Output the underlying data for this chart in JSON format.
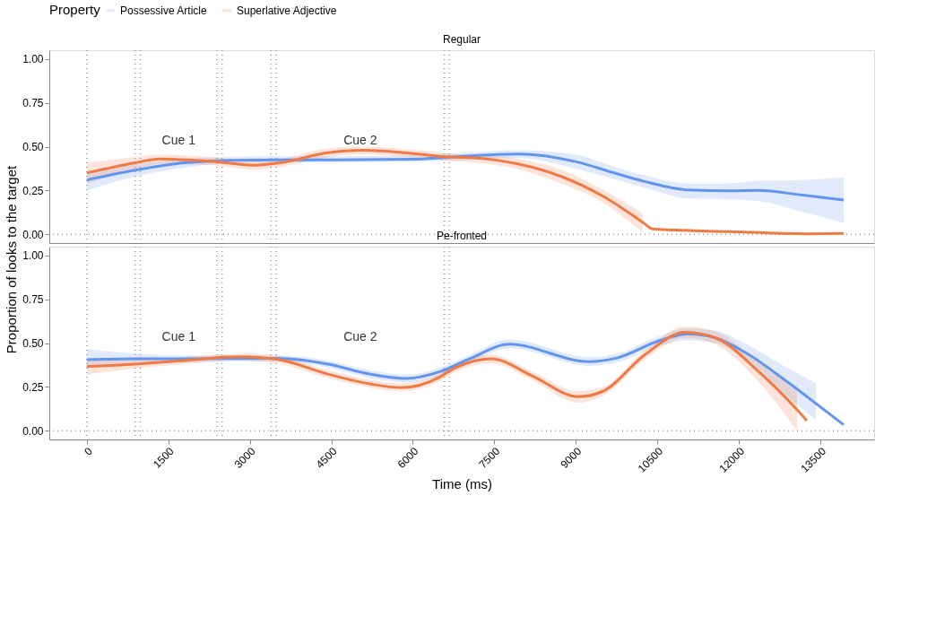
{
  "chart_data": [
    {
      "type": "line",
      "title": "Regular",
      "ylabel": "Proportion of looks to the target",
      "legend_title": "Property",
      "legend": "top",
      "xlim": [
        -690,
        14490
      ],
      "ylim": [
        -0.05,
        1.05
      ],
      "xticks": [
        0,
        1500,
        3000,
        4500,
        6000,
        7500,
        9000,
        10500,
        12000,
        13500
      ],
      "yticks": [
        {
          "value": 0,
          "label": "0.00"
        },
        {
          "value": 0.25,
          "label": "0.25"
        },
        {
          "value": 0.5,
          "label": "0.50"
        },
        {
          "value": 0.75,
          "label": "0.75"
        },
        {
          "value": 1,
          "label": "1.00"
        }
      ],
      "tick_labels": "y",
      "grid": false,
      "marker": "none",
      "line_style": "solid",
      "series": [
        {
          "name": "Possessive Article",
          "color": "#6495ed",
          "x": [
            0,
            890,
            1790,
            2410,
            3500,
            4500,
            6000,
            6660,
            7950,
            8990,
            9760,
            10280,
            11060,
            11830,
            12360,
            13140,
            13930
          ],
          "values": [
            0.31,
            0.366,
            0.408,
            0.42,
            0.425,
            0.425,
            0.428,
            0.44,
            0.458,
            0.415,
            0.345,
            0.3,
            0.253,
            0.248,
            0.25,
            0.225,
            0.196
          ],
          "lower": [
            0.25,
            0.33,
            0.38,
            0.4,
            0.41,
            0.41,
            0.415,
            0.42,
            0.435,
            0.375,
            0.31,
            0.265,
            0.205,
            0.2,
            0.19,
            0.13,
            0.065
          ],
          "upper": [
            0.36,
            0.4,
            0.43,
            0.44,
            0.445,
            0.445,
            0.45,
            0.46,
            0.48,
            0.455,
            0.38,
            0.335,
            0.29,
            0.29,
            0.305,
            0.31,
            0.325
          ]
        },
        {
          "name": "Superlative Adjective",
          "color": "#f07a45",
          "x": [
            0,
            890,
            1340,
            2270,
            3080,
            3560,
            4440,
            5060,
            6100,
            6660,
            7130,
            7950,
            8730,
            9500,
            10230,
            10410,
            11830,
            13230,
            13930
          ],
          "values": [
            0.35,
            0.408,
            0.43,
            0.417,
            0.394,
            0.408,
            0.465,
            0.479,
            0.458,
            0.441,
            0.436,
            0.4,
            0.33,
            0.217,
            0.069,
            0.031,
            0.015,
            0.003,
            0.005
          ],
          "lower": [
            0.29,
            0.37,
            0.4,
            0.395,
            0.37,
            0.385,
            0.44,
            0.455,
            0.435,
            0.42,
            0.41,
            0.37,
            0.29,
            0.18,
            0.01,
            null,
            null,
            null,
            null
          ],
          "upper": [
            0.41,
            0.44,
            0.455,
            0.44,
            0.415,
            0.43,
            0.49,
            0.5,
            0.48,
            0.46,
            0.455,
            0.43,
            0.37,
            0.255,
            0.12,
            null,
            null,
            null,
            null
          ]
        }
      ],
      "ref_lines": [
        {
          "axis": "x",
          "value": 0,
          "line_style": "dotted",
          "color": "#999999"
        },
        {
          "axis": "x",
          "value": 890,
          "line_style": "dotted",
          "color": "#999999"
        },
        {
          "axis": "x",
          "value": 985,
          "line_style": "dotted",
          "color": "#999999"
        },
        {
          "axis": "x",
          "value": 2395,
          "line_style": "dotted",
          "color": "#999999"
        },
        {
          "axis": "x",
          "value": 2490,
          "line_style": "dotted",
          "color": "#999999"
        },
        {
          "axis": "x",
          "value": 3390,
          "line_style": "dotted",
          "color": "#999999"
        },
        {
          "axis": "x",
          "value": 3485,
          "line_style": "dotted",
          "color": "#999999"
        },
        {
          "axis": "x",
          "value": 6580,
          "line_style": "dotted",
          "color": "#999999"
        },
        {
          "axis": "x",
          "value": 6670,
          "line_style": "dotted",
          "color": "#999999"
        },
        {
          "axis": "y",
          "value": 0,
          "line_style": "dotted",
          "color": "#999999"
        }
      ],
      "annotations": [
        "Cue 1",
        "Cue 2"
      ]
    },
    {
      "type": "line",
      "title": "Pe-fronted",
      "xlabel": "Time (ms)",
      "xlim": [
        -690,
        14490
      ],
      "ylim": [
        -0.05,
        1.05
      ],
      "xticks": [
        0,
        1500,
        3000,
        4500,
        6000,
        7500,
        9000,
        10500,
        12000,
        13500
      ],
      "yticks": [
        {
          "value": 0,
          "label": "0.00"
        },
        {
          "value": 0.25,
          "label": "0.25"
        },
        {
          "value": 0.5,
          "label": "0.50"
        },
        {
          "value": 0.75,
          "label": "0.75"
        },
        {
          "value": 1,
          "label": "1.00"
        }
      ],
      "grid": false,
      "marker": "none",
      "line_style": "solid",
      "series": [
        {
          "name": "Possessive Article",
          "color": "#6495ed",
          "x": [
            0,
            890,
            1790,
            2830,
            3500,
            4440,
            5210,
            5880,
            6510,
            7030,
            7780,
            9240,
            9760,
            10540,
            11060,
            11580,
            12100,
            12880,
            13420,
            13930
          ],
          "values": [
            0.405,
            0.41,
            0.41,
            0.412,
            0.413,
            0.38,
            0.323,
            0.298,
            0.338,
            0.408,
            0.493,
            0.394,
            0.415,
            0.514,
            0.552,
            0.528,
            0.45,
            0.281,
            0.155,
            0.034
          ],
          "lower": [
            0.36,
            0.38,
            0.39,
            0.395,
            0.395,
            0.36,
            0.3,
            0.275,
            0.315,
            0.385,
            0.47,
            0.37,
            0.39,
            0.485,
            0.515,
            0.5,
            0.41,
            0.2,
            0.06,
            null
          ],
          "upper": [
            0.465,
            0.44,
            0.43,
            0.43,
            0.43,
            0.4,
            0.345,
            0.32,
            0.36,
            0.43,
            0.52,
            0.42,
            0.44,
            0.54,
            0.585,
            0.57,
            0.5,
            0.36,
            0.27,
            null
          ]
        },
        {
          "name": "Superlative Adjective",
          "color": "#f07a45",
          "x": [
            0,
            890,
            1790,
            2830,
            3500,
            4440,
            5210,
            5780,
            6510,
            6660,
            7440,
            8220,
            9040,
            9500,
            10280,
            11010,
            11580,
            12360,
            13070,
            13250
          ],
          "values": [
            0.366,
            0.38,
            0.4,
            0.422,
            0.408,
            0.323,
            0.267,
            0.246,
            0.309,
            0.338,
            0.411,
            0.309,
            0.194,
            0.225,
            0.436,
            0.561,
            0.528,
            0.338,
            0.12,
            0.058
          ],
          "lower": [
            0.32,
            0.355,
            0.38,
            0.4,
            0.385,
            0.3,
            0.245,
            0.225,
            0.285,
            0.315,
            0.385,
            0.285,
            0.16,
            0.2,
            0.41,
            0.53,
            0.49,
            0.28,
            0.0,
            null
          ],
          "upper": [
            0.41,
            0.405,
            0.42,
            0.44,
            0.43,
            0.345,
            0.29,
            0.27,
            0.33,
            0.36,
            0.435,
            0.335,
            0.225,
            0.25,
            0.46,
            0.595,
            0.565,
            0.39,
            0.22,
            null
          ]
        }
      ],
      "ref_lines": [
        {
          "axis": "x",
          "value": 0,
          "line_style": "dotted",
          "color": "#999999"
        },
        {
          "axis": "x",
          "value": 890,
          "line_style": "dotted",
          "color": "#999999"
        },
        {
          "axis": "x",
          "value": 985,
          "line_style": "dotted",
          "color": "#999999"
        },
        {
          "axis": "x",
          "value": 2395,
          "line_style": "dotted",
          "color": "#999999"
        },
        {
          "axis": "x",
          "value": 2490,
          "line_style": "dotted",
          "color": "#999999"
        },
        {
          "axis": "x",
          "value": 3390,
          "line_style": "dotted",
          "color": "#999999"
        },
        {
          "axis": "x",
          "value": 3485,
          "line_style": "dotted",
          "color": "#999999"
        },
        {
          "axis": "x",
          "value": 6580,
          "line_style": "dotted",
          "color": "#999999"
        },
        {
          "axis": "x",
          "value": 6670,
          "line_style": "dotted",
          "color": "#999999"
        },
        {
          "axis": "y",
          "value": 0,
          "line_style": "dotted",
          "color": "#999999"
        }
      ],
      "annotations": [
        "Cue 1",
        "Cue 2"
      ]
    }
  ]
}
